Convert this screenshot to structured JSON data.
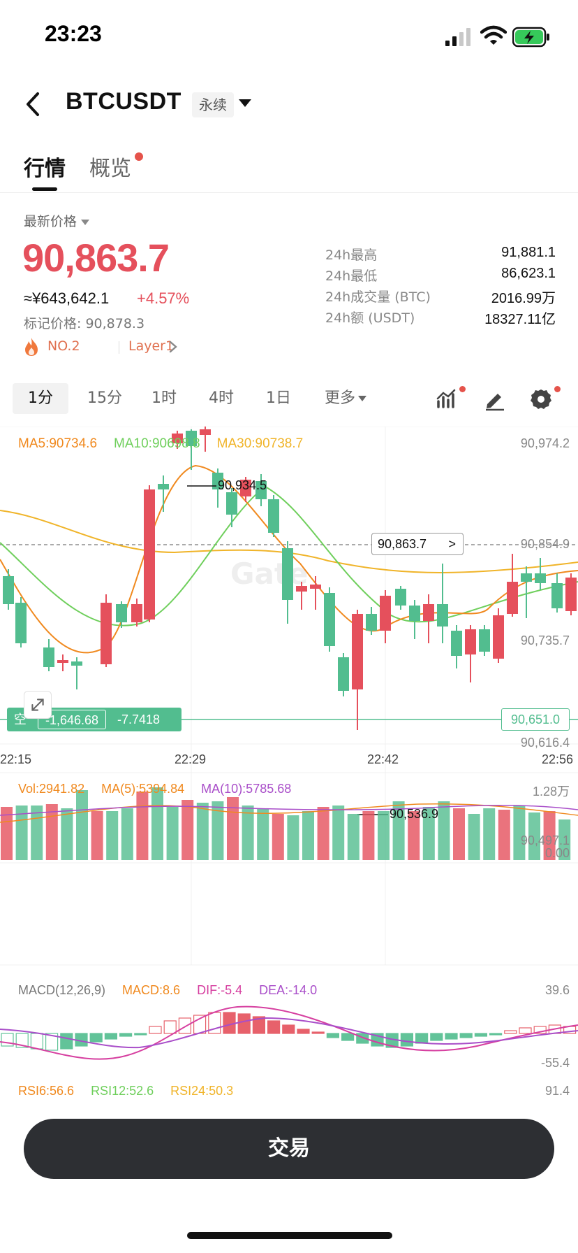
{
  "status": {
    "time": "23:23"
  },
  "header": {
    "pair": "BTCUSDT",
    "contract_type": "永续"
  },
  "tabs": [
    {
      "label": "行情",
      "active": true
    },
    {
      "label": "概览",
      "active": false,
      "dot": true
    }
  ],
  "price": {
    "label": "最新价格",
    "last": "90,863.7",
    "cny": "≈¥643,642.1",
    "change": "+4.57%",
    "mark": "标记价格: 90,878.3",
    "rank": "NO.2",
    "tag": "Layer1"
  },
  "stats": [
    {
      "label": "24h最高",
      "value": "91,881.1"
    },
    {
      "label": "24h最低",
      "value": "86,623.1"
    },
    {
      "label": "24h成交量 (BTC)",
      "value": "2016.99万"
    },
    {
      "label": "24h额 (USDT)",
      "value": "18327.11亿"
    }
  ],
  "intervals": [
    {
      "label": "1分",
      "active": true
    },
    {
      "label": "15分"
    },
    {
      "label": "1时"
    },
    {
      "label": "4时"
    },
    {
      "label": "1日"
    },
    {
      "label": "更多"
    }
  ],
  "chart": {
    "ma_legend": {
      "ma5": "MA5:90734.6",
      "ma10": "MA10:90698.8",
      "ma30": "MA30:90738.7"
    },
    "y_labels": [
      "90,974.2",
      "90,854.9",
      "90,735.7",
      "90,616.4",
      "90,497.1"
    ],
    "time_labels": [
      "22:15",
      "22:29",
      "22:42",
      "22:56"
    ],
    "high_label": "90,934.5",
    "low_label": "90,536.9",
    "last_price_tag": "90,863.7",
    "position": {
      "side": "空",
      "pnl": "-1,646.68",
      "rate": "-7.7418",
      "entry": "90,651.0"
    },
    "volume_legend": {
      "vol": "Vol:2941.82",
      "ma5": "MA(5):5394.84",
      "ma10": "MA(10):5785.68"
    },
    "volume_labels": {
      "top": "1.28万",
      "bottom": "0.00"
    },
    "macd_legend": {
      "name": "MACD(12,26,9)",
      "macd": "MACD:8.6",
      "dif": "DIF:-5.4",
      "dea": "DEA:-14.0"
    },
    "macd_labels": {
      "top": "39.6",
      "bottom": "-55.4"
    },
    "rsi_legend": {
      "rsi6": "RSI6:56.6",
      "rsi12": "RSI12:52.6",
      "rsi24": "RSI24:50.3"
    },
    "rsi_label": "91.4"
  },
  "trade_button": "交易",
  "colors": {
    "up": "#e5505c",
    "down": "#52bd8f",
    "ma5": "#f0891e",
    "ma10": "#6fcf5c",
    "ma30": "#f0b429"
  }
}
